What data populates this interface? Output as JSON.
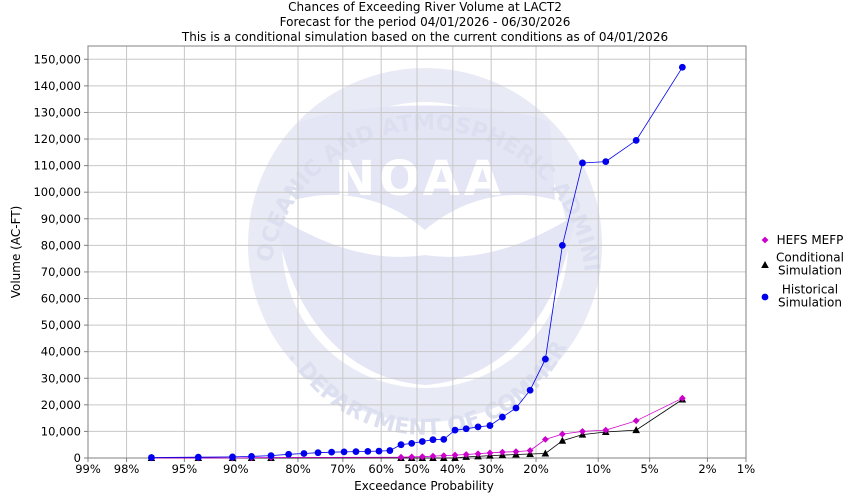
{
  "chart_data": {
    "type": "line",
    "title": [
      "Chances of Exceeding River Volume at LACT2",
      "Forecast for the period 04/01/2026 - 06/30/2026",
      "This is a conditional simulation based on the current conditions as of 04/01/2026"
    ],
    "xlabel": "Exceedance Probability",
    "ylabel": "Volume (AC-FT)",
    "x_axis_scale": "normal-probability",
    "x_ticks": [
      {
        "p": 99,
        "label": "99%"
      },
      {
        "p": 98,
        "label": "98%"
      },
      {
        "p": 95,
        "label": "95%"
      },
      {
        "p": 90,
        "label": "90%"
      },
      {
        "p": 80,
        "label": "80%"
      },
      {
        "p": 70,
        "label": "70%"
      },
      {
        "p": 60,
        "label": "60%"
      },
      {
        "p": 50,
        "label": "50%"
      },
      {
        "p": 40,
        "label": "40%"
      },
      {
        "p": 30,
        "label": "30%"
      },
      {
        "p": 20,
        "label": "20%"
      },
      {
        "p": 10,
        "label": "10%"
      },
      {
        "p": 5,
        "label": "5%"
      },
      {
        "p": 2,
        "label": "2%"
      },
      {
        "p": 1,
        "label": "1%"
      }
    ],
    "ylim": [
      0,
      155000
    ],
    "y_ticks": [
      {
        "v": 0,
        "label": "0"
      },
      {
        "v": 10000,
        "label": "10,000"
      },
      {
        "v": 20000,
        "label": "20,000"
      },
      {
        "v": 30000,
        "label": "30,000"
      },
      {
        "v": 40000,
        "label": "40,000"
      },
      {
        "v": 50000,
        "label": "50,000"
      },
      {
        "v": 60000,
        "label": "60,000"
      },
      {
        "v": 70000,
        "label": "70,000"
      },
      {
        "v": 80000,
        "label": "80,000"
      },
      {
        "v": 90000,
        "label": "90,000"
      },
      {
        "v": 100000,
        "label": "100,000"
      },
      {
        "v": 110000,
        "label": "110,000"
      },
      {
        "v": 120000,
        "label": "120,000"
      },
      {
        "v": 130000,
        "label": "130,000"
      },
      {
        "v": 140000,
        "label": "140,000"
      },
      {
        "v": 150000,
        "label": "150,000"
      }
    ],
    "grid": true,
    "legend_position": "right",
    "watermark": {
      "logo_text": "NOAA",
      "ring_text": "NATIONAL OCEANIC AND ATMOSPHERIC ADMINISTRATION",
      "bottom_text": "U.S. DEPARTMENT OF COMMERCE"
    },
    "series": [
      {
        "name": "HEFS MEFP",
        "legend_lines": [
          "HEFS MEFP"
        ],
        "color": "#cc00cc",
        "marker": "diamond",
        "points": [
          {
            "p": 96.98,
            "v": 0
          },
          {
            "p": 93.9,
            "v": 0
          },
          {
            "p": 90.4,
            "v": 0
          },
          {
            "p": 87.9,
            "v": 100
          },
          {
            "p": 84.9,
            "v": 200
          },
          {
            "p": 54.5,
            "v": 300
          },
          {
            "p": 51.5,
            "v": 400
          },
          {
            "p": 48.5,
            "v": 500
          },
          {
            "p": 45.5,
            "v": 700
          },
          {
            "p": 42.5,
            "v": 900
          },
          {
            "p": 39.4,
            "v": 1100
          },
          {
            "p": 36.4,
            "v": 1300
          },
          {
            "p": 33.3,
            "v": 1600
          },
          {
            "p": 30.3,
            "v": 1900
          },
          {
            "p": 27.3,
            "v": 2200
          },
          {
            "p": 24.2,
            "v": 2400
          },
          {
            "p": 21.2,
            "v": 2800
          },
          {
            "p": 18.2,
            "v": 7000
          },
          {
            "p": 15.2,
            "v": 9000
          },
          {
            "p": 12.1,
            "v": 10000
          },
          {
            "p": 9.1,
            "v": 10500
          },
          {
            "p": 6.06,
            "v": 14000
          },
          {
            "p": 3.03,
            "v": 22500
          }
        ]
      },
      {
        "name": "Conditional Simulation",
        "legend_lines": [
          "Conditional",
          "Simulation"
        ],
        "color": "#000000",
        "marker": "triangle",
        "points": [
          {
            "p": 96.98,
            "v": 0
          },
          {
            "p": 93.9,
            "v": 0
          },
          {
            "p": 90.4,
            "v": 0
          },
          {
            "p": 87.9,
            "v": 0
          },
          {
            "p": 84.9,
            "v": 0
          },
          {
            "p": 54.5,
            "v": 0
          },
          {
            "p": 51.5,
            "v": 0
          },
          {
            "p": 48.5,
            "v": 0
          },
          {
            "p": 45.5,
            "v": 0
          },
          {
            "p": 42.5,
            "v": 0
          },
          {
            "p": 39.4,
            "v": 0
          },
          {
            "p": 36.4,
            "v": 400
          },
          {
            "p": 33.3,
            "v": 600
          },
          {
            "p": 30.3,
            "v": 900
          },
          {
            "p": 27.3,
            "v": 1100
          },
          {
            "p": 24.2,
            "v": 1300
          },
          {
            "p": 21.2,
            "v": 1500
          },
          {
            "p": 18.2,
            "v": 1700
          },
          {
            "p": 15.2,
            "v": 6500
          },
          {
            "p": 12.1,
            "v": 8800
          },
          {
            "p": 9.1,
            "v": 9800
          },
          {
            "p": 6.06,
            "v": 10500
          },
          {
            "p": 3.03,
            "v": 22000
          }
        ]
      },
      {
        "name": "Historical Simulation",
        "legend_lines": [
          "Historical",
          "Simulation"
        ],
        "color": "#0000ee",
        "marker": "circle",
        "points": [
          {
            "p": 96.98,
            "v": 200
          },
          {
            "p": 93.9,
            "v": 300
          },
          {
            "p": 90.4,
            "v": 400
          },
          {
            "p": 87.9,
            "v": 600
          },
          {
            "p": 84.9,
            "v": 900
          },
          {
            "p": 81.8,
            "v": 1400
          },
          {
            "p": 78.8,
            "v": 1700
          },
          {
            "p": 75.8,
            "v": 2000
          },
          {
            "p": 72.7,
            "v": 2200
          },
          {
            "p": 69.7,
            "v": 2300
          },
          {
            "p": 66.7,
            "v": 2400
          },
          {
            "p": 63.6,
            "v": 2500
          },
          {
            "p": 60.6,
            "v": 2600
          },
          {
            "p": 57.6,
            "v": 2800
          },
          {
            "p": 54.5,
            "v": 5000
          },
          {
            "p": 51.5,
            "v": 5500
          },
          {
            "p": 48.5,
            "v": 6200
          },
          {
            "p": 45.5,
            "v": 6900
          },
          {
            "p": 42.5,
            "v": 7000
          },
          {
            "p": 39.4,
            "v": 10500
          },
          {
            "p": 36.4,
            "v": 11000
          },
          {
            "p": 33.3,
            "v": 11700
          },
          {
            "p": 30.3,
            "v": 12200
          },
          {
            "p": 27.3,
            "v": 15400
          },
          {
            "p": 24.2,
            "v": 18800
          },
          {
            "p": 21.2,
            "v": 25500
          },
          {
            "p": 18.2,
            "v": 37200
          },
          {
            "p": 15.2,
            "v": 80000
          },
          {
            "p": 12.1,
            "v": 111000
          },
          {
            "p": 9.1,
            "v": 111500
          },
          {
            "p": 6.06,
            "v": 119500
          },
          {
            "p": 3.03,
            "v": 147000
          }
        ]
      }
    ]
  }
}
